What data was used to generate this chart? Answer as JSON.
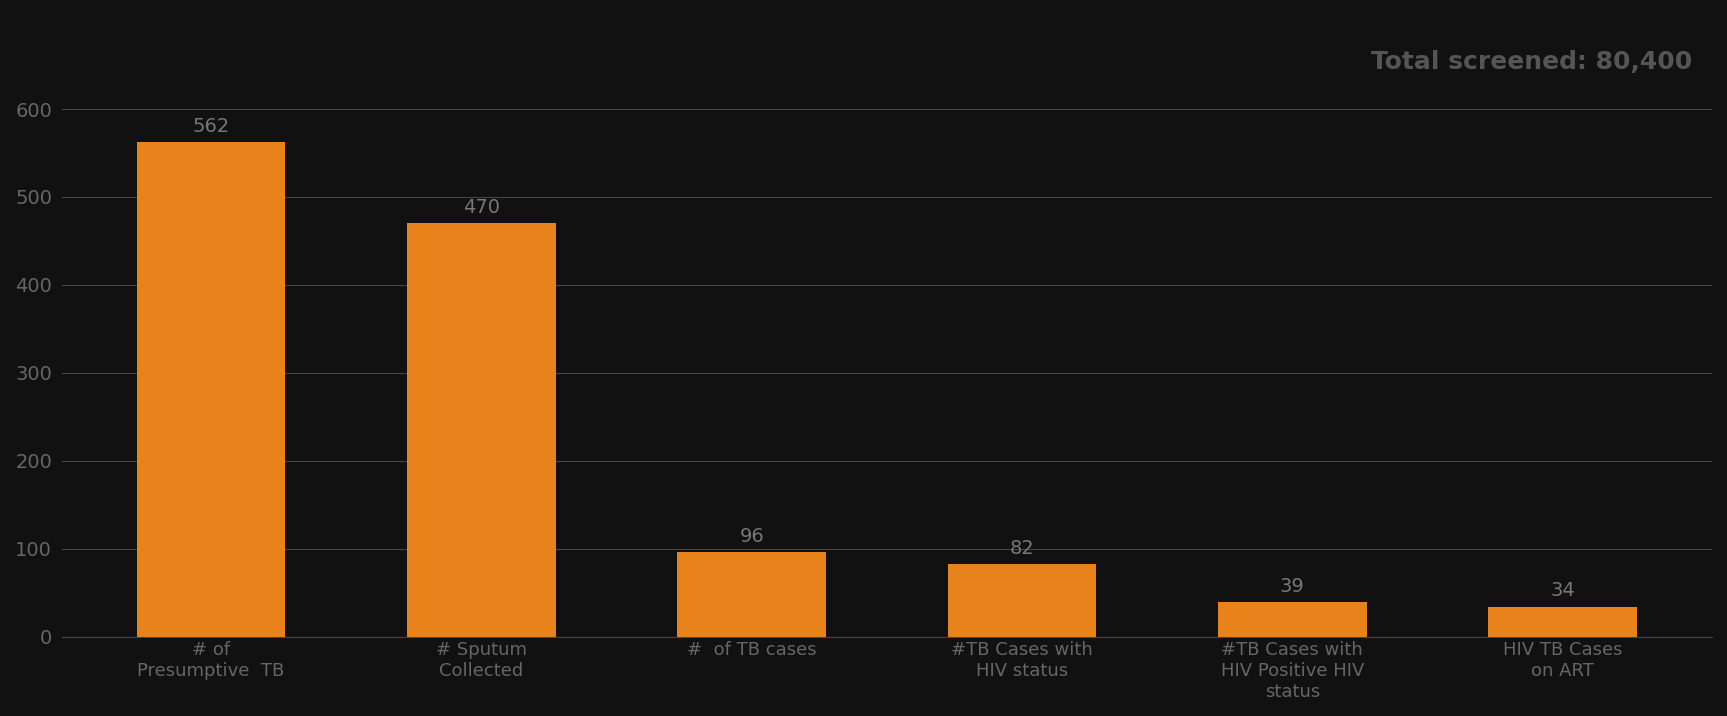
{
  "categories": [
    "# of\nPresumptive  TB",
    "# Sputum\nCollected",
    "#  of TB cases",
    "#TB Cases with\nHIV status",
    "#TB Cases with\nHIV Positive HIV\nstatus",
    "HIV TB Cases\non ART"
  ],
  "values": [
    562,
    470,
    96,
    82,
    39,
    34
  ],
  "bar_color": "#E8821A",
  "title": "Total screened: 80,400",
  "title_fontsize": 18,
  "title_color": "#555555",
  "ylabel_ticks": [
    0,
    100,
    200,
    300,
    400,
    500,
    600
  ],
  "ylim": [
    0,
    650
  ],
  "background_color": "#111111",
  "grid_color": "#444444",
  "tick_color": "#666666",
  "label_color": "#666666",
  "value_label_color": "#777777",
  "value_label_fontsize": 14,
  "tick_fontsize": 14,
  "xlabel_fontsize": 13,
  "bar_width": 0.55
}
